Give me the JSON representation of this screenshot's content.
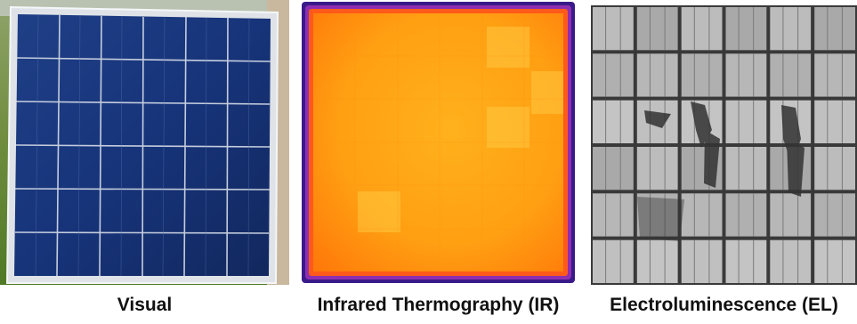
{
  "panels": [
    {
      "caption": "Visual"
    },
    {
      "caption": "Infrared Thermography (IR)"
    },
    {
      "caption": "Electroluminescence (EL)"
    }
  ]
}
